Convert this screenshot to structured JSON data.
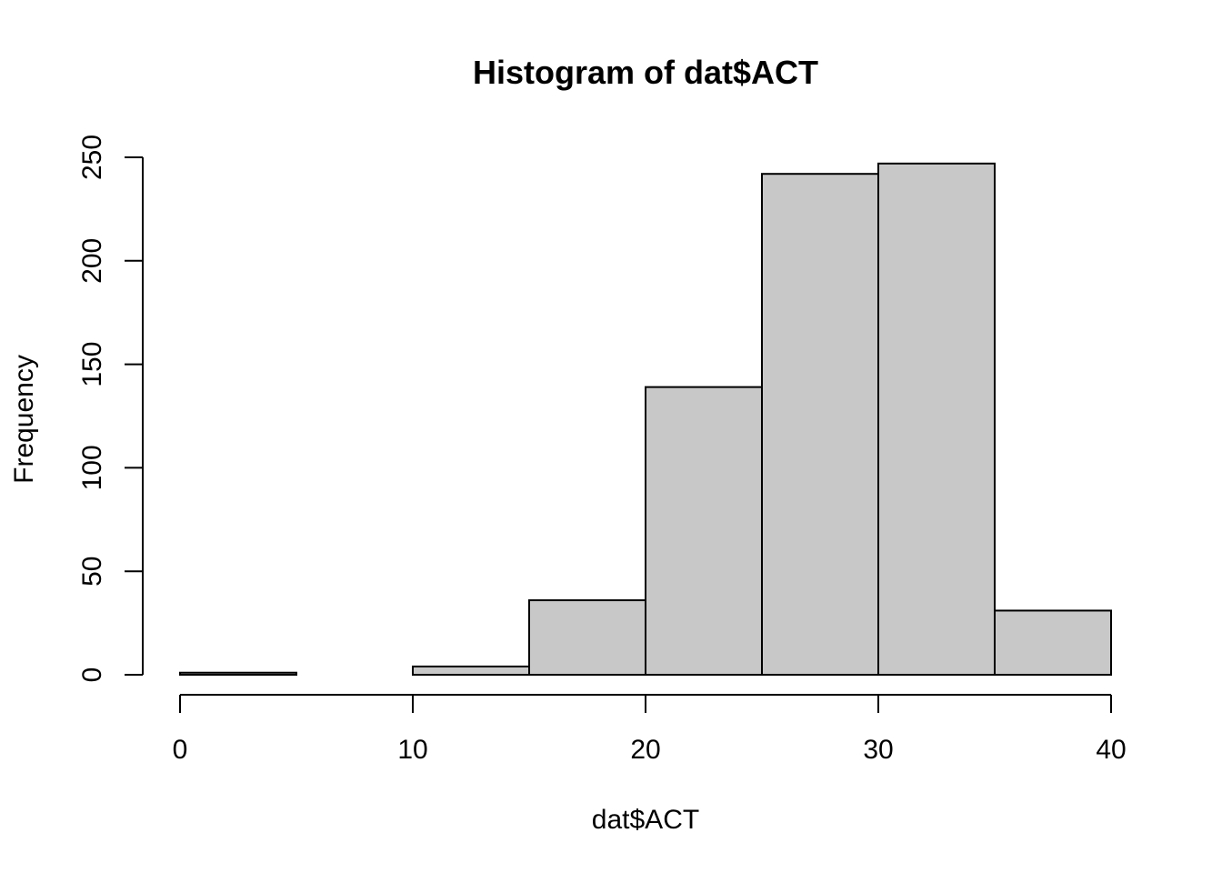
{
  "chart_data": {
    "type": "bar",
    "title": "Histogram of dat$ACT",
    "xlabel": "dat$ACT",
    "ylabel": "Frequency",
    "bins": [
      {
        "start": 0,
        "end": 5,
        "count": 1
      },
      {
        "start": 5,
        "end": 10,
        "count": 0
      },
      {
        "start": 10,
        "end": 15,
        "count": 4
      },
      {
        "start": 15,
        "end": 20,
        "count": 36
      },
      {
        "start": 20,
        "end": 25,
        "count": 139
      },
      {
        "start": 25,
        "end": 30,
        "count": 242
      },
      {
        "start": 30,
        "end": 35,
        "count": 247
      },
      {
        "start": 35,
        "end": 40,
        "count": 31
      }
    ],
    "xlim": [
      0,
      40
    ],
    "ylim": [
      0,
      250
    ],
    "x_ticks": [
      0,
      10,
      20,
      30,
      40
    ],
    "y_ticks": [
      0,
      50,
      100,
      150,
      200,
      250
    ],
    "grid": false,
    "colors": {
      "bar_fill": "#c8c8c8",
      "bar_stroke": "#000000"
    }
  }
}
